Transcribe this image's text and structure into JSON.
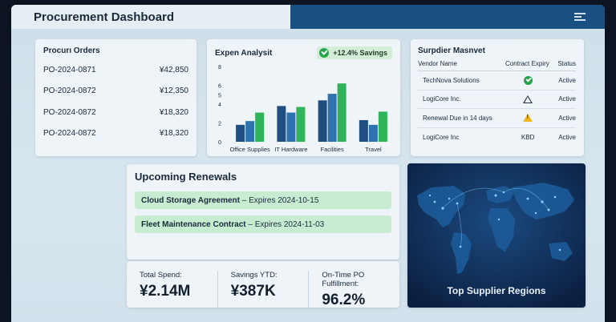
{
  "header": {
    "title": "Procurement Dashboard",
    "menu_icon": "menu-icon"
  },
  "orders": {
    "title": "Procurı Orders",
    "rows": [
      {
        "id": "PO-2024-0871",
        "amount": "¥42,850"
      },
      {
        "id": "PO-2024-0872",
        "amount": "¥12,350"
      },
      {
        "id": "PO-2024-0872",
        "amount": "¥18,320"
      },
      {
        "id": "PO-2024-0872",
        "amount": "¥18,320"
      }
    ]
  },
  "expense": {
    "title": "Expen Analysit",
    "badge": "+12.4% Savings"
  },
  "chart_data": {
    "type": "bar",
    "categories": [
      "Office Supplies",
      "IT Hardware",
      "Facilities",
      "Travel"
    ],
    "series": [
      {
        "values": [
          1.8,
          3.8,
          4.4,
          2.3
        ]
      },
      {
        "values": [
          2.2,
          3.1,
          5.1,
          1.8
        ]
      },
      {
        "values": [
          3.1,
          3.7,
          6.2,
          3.2
        ]
      }
    ],
    "y_ticks": [
      "0",
      "2",
      "4",
      "5",
      "6",
      "8"
    ],
    "ylim": [
      0,
      8
    ],
    "colors": [
      "#1f4f80",
      "#2d73b0",
      "#2fb45a"
    ],
    "grid": false
  },
  "supplier": {
    "title": "Surpdier Masnvet",
    "headers": {
      "vendor": "Vendor Name",
      "expiry": "Contract Expiry",
      "status": "Status"
    },
    "rows": [
      {
        "vendor": "TechNova Solutions",
        "expiry_icon": "check-circle-icon",
        "status": "Active"
      },
      {
        "vendor": "LogiCore Inc.",
        "expiry_icon": "warning-outline-icon",
        "status": "Active"
      },
      {
        "vendor": "Renewal Due in 14 days",
        "expiry_icon": "warning-icon",
        "status": "Active"
      },
      {
        "vendor": "LogiCore Inc",
        "expiry_text": "KBD",
        "status": "Active"
      }
    ]
  },
  "renewals": {
    "title": "Upcoming Renewals",
    "items": [
      {
        "name": "Cloud Storage Agreement",
        "suffix": " – Expires 2024-10-15"
      },
      {
        "name": "Fleet Maintenance Contract",
        "suffix": " – Expires 2024-11-03"
      }
    ]
  },
  "kpis": [
    {
      "label": "Total Spend:",
      "value": "¥2.14M"
    },
    {
      "label": "Savings YTD:",
      "value": "¥387K"
    },
    {
      "label": "On-Time PO Fulfillment:",
      "value": "96.2%"
    }
  ],
  "map": {
    "title": "Top Supplier Regions"
  }
}
